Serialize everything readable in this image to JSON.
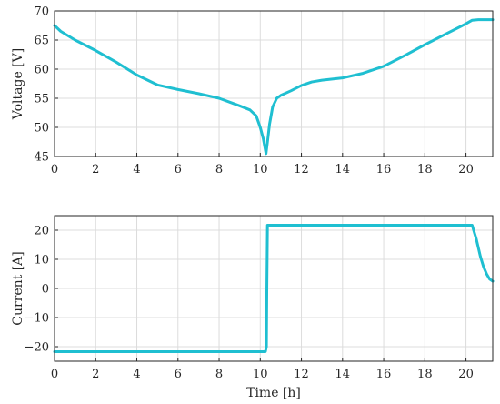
{
  "chart_data": [
    {
      "type": "line",
      "title": "",
      "xlabel": "",
      "ylabel": "Voltage [V]",
      "xlim": [
        0,
        21.3
      ],
      "ylim": [
        45,
        70
      ],
      "xticks": [
        0,
        2,
        4,
        6,
        8,
        10,
        12,
        14,
        16,
        18,
        20
      ],
      "yticks": [
        45,
        50,
        55,
        60,
        65,
        70
      ],
      "grid": true,
      "series": [
        {
          "color": "#1fbfd1",
          "x": [
            0,
            0.3,
            1,
            2,
            3,
            4,
            5,
            6,
            7,
            8,
            9,
            9.5,
            9.8,
            10,
            10.15,
            10.28,
            10.35,
            10.45,
            10.6,
            10.8,
            11,
            11.5,
            12,
            12.5,
            13,
            14,
            15,
            16,
            17,
            18,
            19,
            20,
            20.3,
            20.6,
            21.3
          ],
          "y": [
            67.5,
            66.5,
            65,
            63.2,
            61.2,
            59,
            57.3,
            56.5,
            55.8,
            55,
            53.7,
            53,
            52,
            50,
            48,
            45.5,
            47.5,
            50.5,
            53.5,
            55,
            55.5,
            56.3,
            57.2,
            57.8,
            58.1,
            58.5,
            59.3,
            60.5,
            62.3,
            64.2,
            66,
            67.8,
            68.4,
            68.5,
            68.5
          ]
        }
      ]
    },
    {
      "type": "line",
      "title": "",
      "xlabel": "Time [h]",
      "ylabel": "Current [A]",
      "xlim": [
        0,
        21.3
      ],
      "ylim": [
        -25,
        25
      ],
      "xticks": [
        0,
        2,
        4,
        6,
        8,
        10,
        12,
        14,
        16,
        18,
        20
      ],
      "yticks": [
        -20,
        -10,
        0,
        10,
        20
      ],
      "grid": true,
      "series": [
        {
          "color": "#1fbfd1",
          "x": [
            0,
            10.25,
            10.3,
            10.32,
            10.35,
            10.38,
            20.3,
            20.5,
            20.7,
            20.85,
            21.0,
            21.15,
            21.3
          ],
          "y": [
            -21.7,
            -21.7,
            -20,
            0,
            21.7,
            21.7,
            21.7,
            17,
            11,
            7.5,
            5,
            3.2,
            2.5
          ]
        }
      ]
    }
  ]
}
